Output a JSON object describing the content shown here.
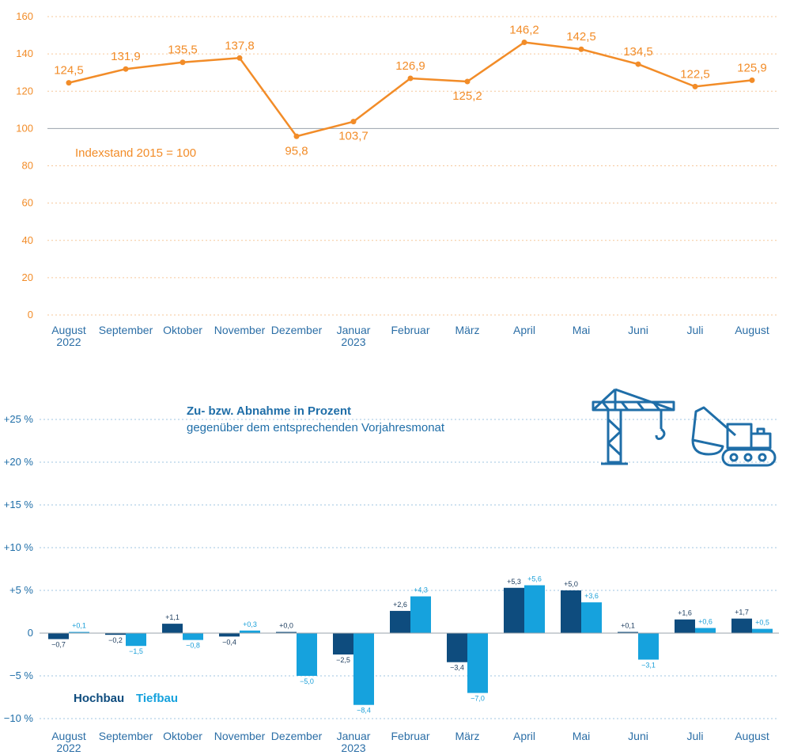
{
  "colors": {
    "orange": "#f28c28",
    "hochbau": "#0e4c7e",
    "tiefbau": "#16a2dd",
    "axis_blue": "#1f6ea8"
  },
  "icons": [
    "crane-icon",
    "excavator-icon"
  ],
  "chart_data": [
    {
      "type": "line",
      "categories": [
        "August\n2022",
        "September",
        "Oktober",
        "November",
        "Dezember",
        "Januar\n2023",
        "Februar",
        "März",
        "April",
        "Mai",
        "Juni",
        "Juli",
        "August"
      ],
      "values": [
        124.5,
        131.9,
        135.5,
        137.8,
        95.8,
        103.7,
        126.9,
        125.2,
        146.2,
        142.5,
        134.5,
        122.5,
        125.9
      ],
      "value_labels": [
        "124,5",
        "131,9",
        "135,5",
        "137,8",
        "95,8",
        "103,7",
        "126,9",
        "125,2",
        "146,2",
        "142,5",
        "134,5",
        "122,5",
        "125,9"
      ],
      "yticks": [
        "0",
        "20",
        "40",
        "60",
        "80",
        "100",
        "120",
        "140",
        "160"
      ],
      "ylim": [
        0,
        160
      ],
      "annotation": "Indexstand 2015 = 100",
      "reference_line": 100,
      "grid": true
    },
    {
      "type": "bar",
      "categories": [
        "August\n2022",
        "September",
        "Oktober",
        "November",
        "Dezember",
        "Januar\n2023",
        "Februar",
        "März",
        "April",
        "Mai",
        "Juni",
        "Juli",
        "August"
      ],
      "title": "Zu- bzw. Abnahme in Prozent",
      "subtitle": "gegenüber dem entsprechenden Vorjahresmonat",
      "yticks": [
        "−10 %",
        "−5 %",
        "0",
        "+5 %",
        "+10 %",
        "+15 %",
        "+20 %",
        "+25 %"
      ],
      "ylim": [
        -10,
        25
      ],
      "legend_placement": "bottom-left",
      "series": [
        {
          "name": "Hochbau",
          "values": [
            -0.7,
            -0.2,
            1.1,
            -0.4,
            0.0,
            -2.5,
            2.6,
            -3.4,
            5.3,
            5.0,
            0.1,
            1.6,
            1.7
          ],
          "labels": [
            "−0,7",
            "−0,2",
            "+1,1",
            "−0,4",
            "+0,0",
            "−2,5",
            "+2,6",
            "−3,4",
            "+5,3",
            "+5,0",
            "+0,1",
            "+1,6",
            "+1,7"
          ]
        },
        {
          "name": "Tiefbau",
          "values": [
            0.1,
            -1.5,
            -0.8,
            0.3,
            -5.0,
            -8.4,
            4.3,
            -7.0,
            5.6,
            3.6,
            -3.1,
            0.6,
            0.5
          ],
          "labels": [
            "+0,1",
            "−1,5",
            "−0,8",
            "+0,3",
            "−5,0",
            "−8,4",
            "+4,3",
            "−7,0",
            "+5,6",
            "+3,6",
            "−3,1",
            "+0,6",
            "+0,5"
          ]
        }
      ]
    }
  ]
}
